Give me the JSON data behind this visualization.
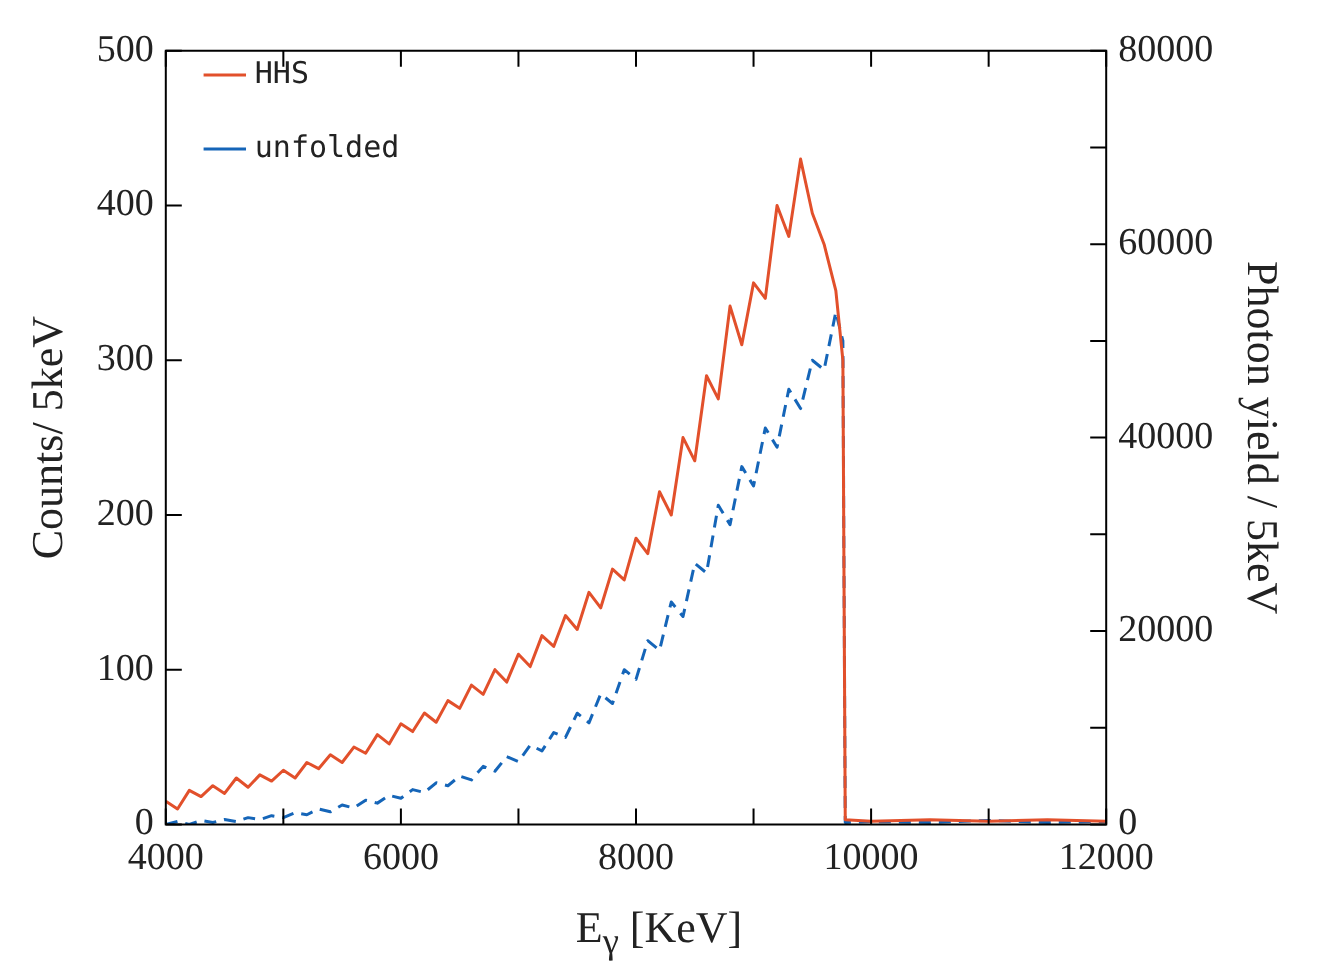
{
  "chart_data": {
    "type": "line",
    "xlabel": "E$_{γ}$ [KeV]",
    "ylabel": "Counts/ 5keV",
    "y2label": "Photon yield / 5keV",
    "xlim": [
      4000,
      12000
    ],
    "xticks": [
      4000,
      {
        "value": 5000,
        "label": null
      },
      6000,
      {
        "value": 7000,
        "label": null
      },
      8000,
      {
        "value": 9000,
        "label": null
      },
      10000,
      {
        "value": 11000,
        "label": null
      },
      12000
    ],
    "ylim": [
      0,
      500
    ],
    "yticks": [
      0,
      100,
      200,
      300,
      400,
      500
    ],
    "y2lim": [
      0,
      80000
    ],
    "y2ticks": [
      0,
      {
        "value": 10000,
        "label": null
      },
      20000,
      {
        "value": 30000,
        "label": null
      },
      40000,
      {
        "value": 50000,
        "label": null
      },
      60000,
      {
        "value": 70000,
        "label": null
      },
      80000
    ],
    "grid": false,
    "legend": "top left",
    "marker": "none",
    "series": [
      {
        "name": "HHS",
        "color": "#e2502b",
        "line_style": "solid",
        "axis": "y",
        "x": [
          4000,
          4100,
          4200,
          4300,
          4400,
          4500,
          4600,
          4700,
          4800,
          4900,
          5000,
          5100,
          5200,
          5300,
          5400,
          5500,
          5600,
          5700,
          5800,
          5900,
          6000,
          6100,
          6200,
          6300,
          6400,
          6500,
          6600,
          6700,
          6800,
          6900,
          7000,
          7100,
          7200,
          7300,
          7400,
          7500,
          7600,
          7700,
          7800,
          7900,
          8000,
          8100,
          8200,
          8300,
          8400,
          8500,
          8600,
          8700,
          8800,
          8900,
          9000,
          9100,
          9200,
          9300,
          9400,
          9500,
          9600,
          9700,
          9760,
          9780,
          10000,
          10500,
          11000,
          11500,
          12000
        ],
        "values": [
          15,
          10,
          22,
          18,
          25,
          20,
          30,
          24,
          32,
          28,
          35,
          30,
          40,
          36,
          45,
          40,
          50,
          46,
          58,
          52,
          65,
          60,
          72,
          66,
          80,
          75,
          90,
          84,
          100,
          92,
          110,
          102,
          122,
          115,
          135,
          126,
          150,
          140,
          165,
          158,
          185,
          175,
          215,
          200,
          250,
          235,
          290,
          275,
          335,
          310,
          350,
          340,
          400,
          380,
          430,
          395,
          375,
          345,
          300,
          3,
          2,
          3,
          2,
          3,
          2
        ]
      },
      {
        "name": "unfolded",
        "color": "#1565b8",
        "line_style": "dashed",
        "axis": "y2",
        "x": [
          4000,
          4100,
          4200,
          4300,
          4400,
          4500,
          4600,
          4700,
          4800,
          4900,
          5000,
          5100,
          5200,
          5300,
          5400,
          5500,
          5600,
          5700,
          5800,
          5900,
          6000,
          6100,
          6200,
          6300,
          6400,
          6500,
          6600,
          6700,
          6800,
          6900,
          7000,
          7100,
          7200,
          7300,
          7400,
          7500,
          7600,
          7700,
          7800,
          7900,
          8000,
          8100,
          8200,
          8300,
          8400,
          8500,
          8600,
          8700,
          8800,
          8900,
          9000,
          9100,
          9200,
          9300,
          9400,
          9500,
          9600,
          9700,
          9760,
          9780,
          10000,
          10500,
          11000,
          11500,
          12000
        ],
        "values": [
          0,
          300,
          0,
          400,
          200,
          500,
          300,
          700,
          500,
          900,
          700,
          1200,
          1000,
          1600,
          1300,
          2000,
          1700,
          2500,
          2200,
          3000,
          2700,
          3600,
          3300,
          4300,
          4000,
          5000,
          4600,
          6000,
          5500,
          7000,
          6500,
          8200,
          7600,
          9500,
          9000,
          11500,
          10500,
          13500,
          12500,
          16000,
          15000,
          19000,
          18000,
          23000,
          21500,
          27000,
          26000,
          33000,
          31000,
          37000,
          35000,
          41000,
          39000,
          45000,
          43000,
          48000,
          47000,
          53000,
          50000,
          200,
          300,
          200,
          400,
          200,
          300
        ]
      }
    ]
  }
}
